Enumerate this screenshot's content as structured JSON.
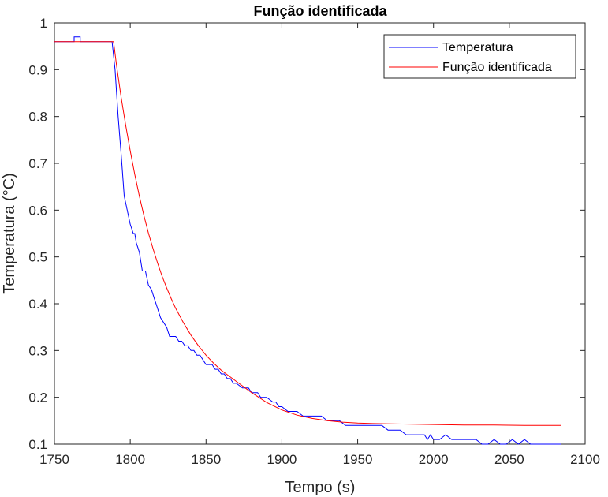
{
  "chart_data": {
    "type": "line",
    "title": "Função identificada",
    "xlabel": "Tempo (s)",
    "ylabel": "Temperatura (°C)",
    "xlim": [
      1750,
      2100
    ],
    "ylim": [
      0.1,
      1
    ],
    "xticks": [
      1750,
      1800,
      1850,
      1900,
      1950,
      2000,
      2050,
      2100
    ],
    "yticks": [
      0.1,
      0.2,
      0.3,
      0.4,
      0.5,
      0.6,
      0.7,
      0.8,
      0.9,
      1
    ],
    "xtick_labels": [
      "1750",
      "1800",
      "1850",
      "1900",
      "1950",
      "2000",
      "2050",
      "2100"
    ],
    "ytick_labels": [
      "0.1",
      "0.2",
      "0.3",
      "0.4",
      "0.5",
      "0.6",
      "0.7",
      "0.8",
      "0.9",
      "1"
    ],
    "grid": false,
    "legend": {
      "position": "top-right"
    },
    "series": [
      {
        "name": "Temperatura",
        "color": "#0000ff",
        "x": [
          1750,
          1763,
          1763,
          1767,
          1767,
          1788,
          1790,
          1792,
          1794,
          1796,
          1798,
          1800,
          1801,
          1802,
          1803,
          1804,
          1805,
          1806,
          1807,
          1808,
          1810,
          1812,
          1814,
          1816,
          1818,
          1820,
          1822,
          1824,
          1826,
          1828,
          1830,
          1832,
          1834,
          1836,
          1838,
          1840,
          1842,
          1844,
          1846,
          1848,
          1850,
          1852,
          1854,
          1856,
          1858,
          1860,
          1862,
          1864,
          1866,
          1868,
          1870,
          1874,
          1878,
          1880,
          1882,
          1884,
          1886,
          1888,
          1890,
          1894,
          1896,
          1898,
          1900,
          1904,
          1908,
          1910,
          1914,
          1918,
          1922,
          1926,
          1930,
          1934,
          1938,
          1942,
          1946,
          1950,
          1954,
          1958,
          1962,
          1966,
          1970,
          1974,
          1978,
          1982,
          1986,
          1990,
          1994,
          1996,
          1998,
          2000,
          2004,
          2008,
          2012,
          2016,
          2020,
          2024,
          2028,
          2032,
          2036,
          2040,
          2044,
          2048,
          2052,
          2056,
          2060,
          2064,
          2068,
          2072,
          2076,
          2080,
          2084
        ],
        "y": [
          0.96,
          0.96,
          0.97,
          0.97,
          0.96,
          0.96,
          0.9,
          0.8,
          0.72,
          0.63,
          0.6,
          0.57,
          0.56,
          0.55,
          0.55,
          0.53,
          0.52,
          0.51,
          0.49,
          0.47,
          0.47,
          0.44,
          0.43,
          0.41,
          0.39,
          0.37,
          0.36,
          0.35,
          0.33,
          0.33,
          0.33,
          0.32,
          0.32,
          0.31,
          0.31,
          0.3,
          0.3,
          0.29,
          0.29,
          0.28,
          0.27,
          0.27,
          0.27,
          0.26,
          0.26,
          0.25,
          0.25,
          0.24,
          0.24,
          0.23,
          0.23,
          0.22,
          0.22,
          0.21,
          0.21,
          0.21,
          0.2,
          0.2,
          0.2,
          0.19,
          0.19,
          0.18,
          0.18,
          0.17,
          0.17,
          0.17,
          0.16,
          0.16,
          0.16,
          0.16,
          0.15,
          0.15,
          0.15,
          0.14,
          0.14,
          0.14,
          0.14,
          0.14,
          0.14,
          0.14,
          0.13,
          0.13,
          0.13,
          0.12,
          0.12,
          0.12,
          0.12,
          0.11,
          0.12,
          0.11,
          0.11,
          0.12,
          0.11,
          0.11,
          0.11,
          0.11,
          0.11,
          0.1,
          0.1,
          0.11,
          0.1,
          0.1,
          0.11,
          0.1,
          0.11,
          0.1,
          0.1,
          0.1,
          0.1,
          0.1,
          0.1
        ]
      },
      {
        "name": "Função identificada",
        "color": "#ff0000",
        "x": [
          1750,
          1789,
          1791,
          1794,
          1797,
          1800,
          1803,
          1806,
          1809,
          1812,
          1815,
          1818,
          1821,
          1824,
          1827,
          1830,
          1835,
          1840,
          1845,
          1850,
          1855,
          1860,
          1870,
          1880,
          1890,
          1900,
          1910,
          1920,
          1930,
          1940,
          1950,
          1960,
          1980,
          2000,
          2020,
          2040,
          2060,
          2084
        ],
        "y": [
          0.96,
          0.96,
          0.909,
          0.841,
          0.781,
          0.727,
          0.676,
          0.63,
          0.589,
          0.551,
          0.518,
          0.487,
          0.459,
          0.434,
          0.411,
          0.39,
          0.36,
          0.333,
          0.31,
          0.29,
          0.273,
          0.258,
          0.234,
          0.21,
          0.189,
          0.173,
          0.162,
          0.155,
          0.15,
          0.147,
          0.145,
          0.144,
          0.143,
          0.142,
          0.141,
          0.141,
          0.14,
          0.14
        ]
      }
    ]
  }
}
